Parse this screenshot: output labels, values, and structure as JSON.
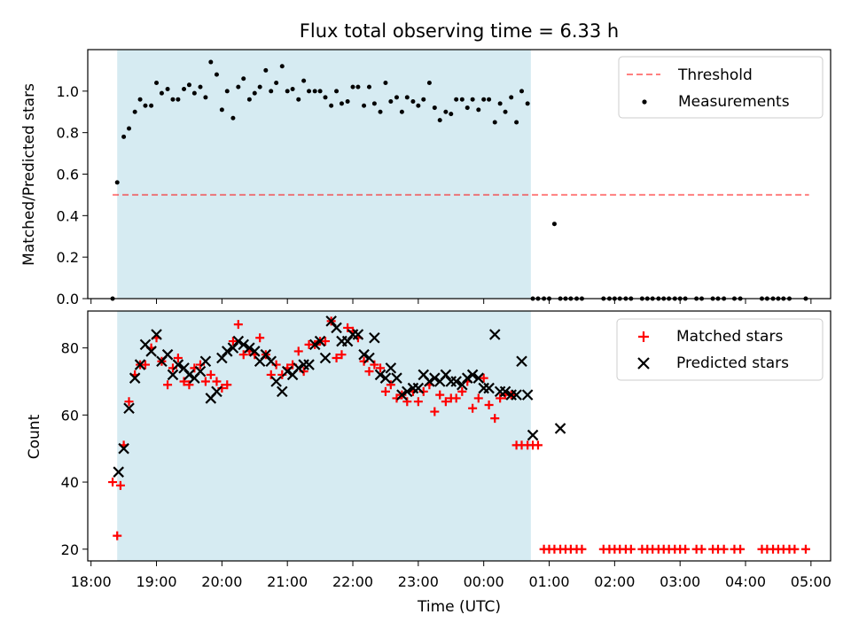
{
  "title": "Flux total observing time = 6.33 h",
  "colors": {
    "shade": "#add8e6",
    "threshold": "#ff0000",
    "matched": "#ff0000",
    "predicted": "#000000",
    "measurements": "#000000"
  },
  "chart_data": [
    {
      "type": "scatter",
      "ylabel": "Matched/Predicted stars",
      "ylim": [
        0,
        1.2
      ],
      "yticks": [
        0.0,
        0.2,
        0.4,
        0.6,
        0.8,
        1.0
      ],
      "xlim": [
        17.95,
        29.3
      ],
      "shaded_interval": [
        18.4,
        24.72
      ],
      "legend": {
        "position": "top-right",
        "threshold_label": "Threshold",
        "measurements_label": "Measurements"
      },
      "threshold": {
        "value": 0.5,
        "x_range": [
          18.33,
          28.97
        ]
      },
      "series": [
        {
          "name": "Measurements",
          "x": [
            18.33,
            18.4,
            18.5,
            18.58,
            18.67,
            18.75,
            18.83,
            18.92,
            19.0,
            19.08,
            19.17,
            19.25,
            19.33,
            19.42,
            19.5,
            19.58,
            19.67,
            19.75,
            19.83,
            19.92,
            20.0,
            20.08,
            20.17,
            20.25,
            20.33,
            20.42,
            20.5,
            20.58,
            20.67,
            20.75,
            20.83,
            20.92,
            21.0,
            21.08,
            21.17,
            21.25,
            21.33,
            21.42,
            21.5,
            21.58,
            21.67,
            21.75,
            21.83,
            21.92,
            22.0,
            22.08,
            22.17,
            22.25,
            22.33,
            22.42,
            22.5,
            22.58,
            22.67,
            22.75,
            22.83,
            22.92,
            23.0,
            23.08,
            23.17,
            23.25,
            23.33,
            23.42,
            23.5,
            23.58,
            23.67,
            23.75,
            23.83,
            23.92,
            24.0,
            24.08,
            24.17,
            24.25,
            24.33,
            24.42,
            24.5,
            24.58,
            24.67,
            24.75,
            24.83,
            24.92,
            25.0,
            25.08,
            25.17,
            25.25,
            25.33,
            25.42,
            25.5,
            25.83,
            25.92,
            26.0,
            26.08,
            26.17,
            26.25,
            26.42,
            26.5,
            26.58,
            26.67,
            26.75,
            26.83,
            26.92,
            27.0,
            27.08,
            27.25,
            27.33,
            27.5,
            27.58,
            27.67,
            27.83,
            27.92,
            28.25,
            28.33,
            28.42,
            28.5,
            28.58,
            28.67,
            28.92
          ],
          "y": [
            0.0,
            0.56,
            0.78,
            0.82,
            0.9,
            0.96,
            0.93,
            0.93,
            1.04,
            0.99,
            1.01,
            0.96,
            0.96,
            1.01,
            1.03,
            0.99,
            1.02,
            0.97,
            1.14,
            1.08,
            0.91,
            1.0,
            0.87,
            1.02,
            1.06,
            0.96,
            0.99,
            1.02,
            1.1,
            1.0,
            1.04,
            1.12,
            1.0,
            1.01,
            0.96,
            1.05,
            1.0,
            1.0,
            1.0,
            0.97,
            0.93,
            1.0,
            0.94,
            0.95,
            1.02,
            1.02,
            0.93,
            1.02,
            0.94,
            0.9,
            1.04,
            0.95,
            0.97,
            0.9,
            0.97,
            0.95,
            0.93,
            0.96,
            1.04,
            0.92,
            0.86,
            0.9,
            0.89,
            0.96,
            0.96,
            0.92,
            0.96,
            0.91,
            0.96,
            0.96,
            0.85,
            0.94,
            0.9,
            0.97,
            0.85,
            1.0,
            0.94,
            0.0,
            0.0,
            0.0,
            0.0,
            0.36,
            0.0,
            0.0,
            0.0,
            0.0,
            0.0,
            0.0,
            0.0,
            0.0,
            0.0,
            0.0,
            0.0,
            0.0,
            0.0,
            0.0,
            0.0,
            0.0,
            0.0,
            0.0,
            0.0,
            0.0,
            0.0,
            0.0,
            0.0,
            0.0,
            0.0,
            0.0,
            0.0,
            0.0,
            0.0,
            0.0,
            0.0,
            0.0,
            0.0,
            0.0
          ]
        }
      ]
    },
    {
      "type": "scatter",
      "ylabel": "Count",
      "xlabel": "Time (UTC)",
      "ylim": [
        16.5,
        91
      ],
      "yticks": [
        20,
        40,
        60,
        80
      ],
      "xlim": [
        17.95,
        29.3
      ],
      "xticks": [
        18,
        19,
        20,
        21,
        22,
        23,
        24,
        25,
        26,
        27,
        28,
        29
      ],
      "xtick_labels": [
        "18:00",
        "19:00",
        "20:00",
        "21:00",
        "22:00",
        "23:00",
        "00:00",
        "01:00",
        "02:00",
        "03:00",
        "04:00",
        "05:00"
      ],
      "shaded_interval": [
        18.4,
        24.72
      ],
      "legend": {
        "position": "top-right"
      },
      "series": [
        {
          "name": "Matched stars",
          "x": [
            18.33,
            18.4,
            18.45,
            18.5,
            18.58,
            18.67,
            18.75,
            18.83,
            18.92,
            19.0,
            19.08,
            19.17,
            19.25,
            19.33,
            19.42,
            19.5,
            19.58,
            19.67,
            19.75,
            19.83,
            19.92,
            20.0,
            20.08,
            20.17,
            20.25,
            20.33,
            20.42,
            20.5,
            20.58,
            20.67,
            20.75,
            20.83,
            20.92,
            21.0,
            21.08,
            21.17,
            21.25,
            21.33,
            21.42,
            21.5,
            21.58,
            21.67,
            21.75,
            21.83,
            21.92,
            22.0,
            22.08,
            22.17,
            22.25,
            22.33,
            22.42,
            22.5,
            22.58,
            22.67,
            22.75,
            22.83,
            22.92,
            23.0,
            23.08,
            23.17,
            23.25,
            23.33,
            23.42,
            23.5,
            23.58,
            23.67,
            23.75,
            23.83,
            23.92,
            24.0,
            24.08,
            24.17,
            24.25,
            24.33,
            24.42,
            24.5,
            24.58,
            24.67,
            24.75,
            24.83,
            24.92,
            25.0,
            25.08,
            25.17,
            25.25,
            25.33,
            25.42,
            25.5,
            25.83,
            25.92,
            26.0,
            26.08,
            26.17,
            26.25,
            26.42,
            26.5,
            26.58,
            26.67,
            26.75,
            26.83,
            26.92,
            27.0,
            27.08,
            27.25,
            27.33,
            27.5,
            27.58,
            27.67,
            27.83,
            27.92,
            28.25,
            28.33,
            28.42,
            28.5,
            28.58,
            28.67,
            28.75,
            28.92
          ],
          "y": [
            40,
            24,
            39,
            51,
            64,
            72,
            75,
            75,
            80,
            83,
            76,
            69,
            74,
            77,
            70,
            69,
            74,
            75,
            70,
            72,
            70,
            68,
            69,
            82,
            87,
            78,
            79,
            78,
            83,
            78,
            72,
            75,
            72,
            74,
            75,
            79,
            73,
            81,
            81,
            82,
            82,
            88,
            77,
            78,
            86,
            85,
            83,
            76,
            73,
            75,
            74,
            67,
            69,
            65,
            66,
            64,
            67,
            64,
            67,
            69,
            61,
            66,
            64,
            65,
            65,
            67,
            70,
            62,
            65,
            71,
            63,
            59,
            65,
            66,
            66,
            51,
            51,
            51,
            51,
            51,
            20,
            20,
            20,
            20,
            20,
            20,
            20,
            20,
            20,
            20,
            20,
            20,
            20,
            20,
            20,
            20,
            20,
            20,
            20,
            20,
            20,
            20,
            20,
            20,
            20,
            20,
            20,
            20,
            20,
            20,
            20,
            20,
            20,
            20,
            20,
            20,
            20,
            20
          ]
        },
        {
          "name": "Predicted stars",
          "x": [
            18.42,
            18.5,
            18.58,
            18.67,
            18.75,
            18.83,
            18.92,
            19.0,
            19.08,
            19.17,
            19.25,
            19.33,
            19.42,
            19.5,
            19.58,
            19.67,
            19.75,
            19.83,
            19.92,
            20.0,
            20.08,
            20.17,
            20.25,
            20.33,
            20.42,
            20.5,
            20.58,
            20.67,
            20.75,
            20.83,
            20.92,
            21.0,
            21.08,
            21.17,
            21.25,
            21.33,
            21.42,
            21.5,
            21.58,
            21.67,
            21.75,
            21.83,
            21.92,
            22.0,
            22.08,
            22.17,
            22.25,
            22.33,
            22.42,
            22.5,
            22.58,
            22.67,
            22.75,
            22.83,
            22.92,
            23.0,
            23.08,
            23.17,
            23.25,
            23.33,
            23.42,
            23.5,
            23.58,
            23.67,
            23.75,
            23.83,
            23.92,
            24.0,
            24.08,
            24.17,
            24.25,
            24.33,
            24.42,
            24.5,
            24.58,
            24.67,
            24.75,
            25.17
          ],
          "y": [
            43,
            50,
            62,
            71,
            75,
            81,
            79,
            84,
            76,
            78,
            72,
            75,
            74,
            72,
            71,
            73,
            76,
            65,
            67,
            77,
            79,
            80,
            82,
            81,
            80,
            79,
            76,
            78,
            76,
            70,
            67,
            73,
            72,
            74,
            75,
            75,
            81,
            82,
            77,
            88,
            86,
            82,
            82,
            84,
            84,
            78,
            77,
            83,
            72,
            71,
            74,
            71,
            66,
            67,
            68,
            68,
            72,
            70,
            71,
            70,
            72,
            70,
            70,
            69,
            71,
            72,
            71,
            68,
            68,
            84,
            67,
            67,
            66,
            66,
            76,
            66,
            54,
            56
          ]
        }
      ]
    }
  ]
}
